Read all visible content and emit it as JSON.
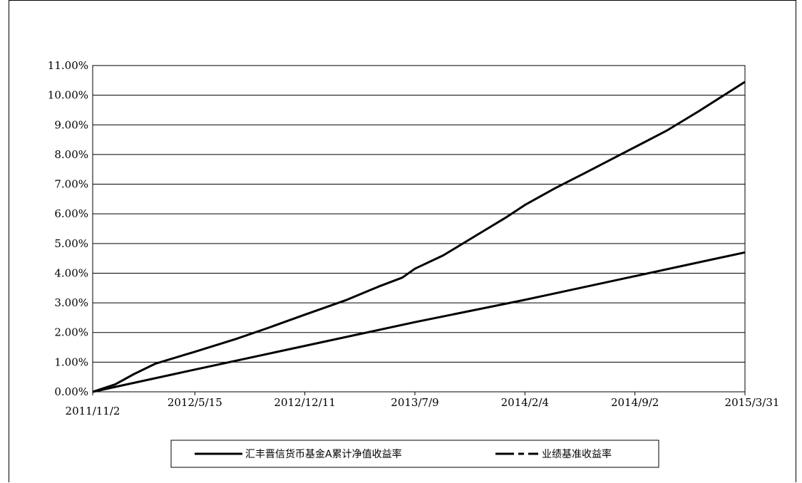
{
  "chart_data": {
    "type": "line",
    "title": "",
    "xlabel": "",
    "ylabel": "",
    "y_ticks": [
      "0.00%",
      "1.00%",
      "2.00%",
      "3.00%",
      "4.00%",
      "5.00%",
      "6.00%",
      "7.00%",
      "8.00%",
      "9.00%",
      "10.00%",
      "11.00%"
    ],
    "x_ticks": [
      "2011/11/2",
      "2012/5/15",
      "2012/12/11",
      "2013/7/9",
      "2014/2/4",
      "2014/9/2",
      "2015/3/31"
    ],
    "ylim": [
      0,
      11
    ],
    "xlim": [
      "2011/11/2",
      "2015/3/31"
    ],
    "grid": "horizontal",
    "legend_position": "bottom",
    "series": [
      {
        "name": "汇丰晋信货币基金A累计净值收益率",
        "style": "solid",
        "color": "#000000",
        "points": [
          [
            "2011/11/2",
            0.0
          ],
          [
            "2011/12/15",
            0.25
          ],
          [
            "2012/1/20",
            0.6
          ],
          [
            "2012/3/1",
            0.95
          ],
          [
            "2012/5/15",
            1.35
          ],
          [
            "2012/8/1",
            1.78
          ],
          [
            "2012/10/1",
            2.15
          ],
          [
            "2012/12/11",
            2.6
          ],
          [
            "2013/3/1",
            3.1
          ],
          [
            "2013/5/1",
            3.55
          ],
          [
            "2013/6/15",
            3.85
          ],
          [
            "2013/7/9",
            4.15
          ],
          [
            "2013/9/1",
            4.6
          ],
          [
            "2013/11/1",
            5.25
          ],
          [
            "2014/1/1",
            5.9
          ],
          [
            "2014/2/4",
            6.3
          ],
          [
            "2014/4/1",
            6.85
          ],
          [
            "2014/6/1",
            7.4
          ],
          [
            "2014/9/2",
            8.25
          ],
          [
            "2014/11/1",
            8.8
          ],
          [
            "2015/1/1",
            9.45
          ],
          [
            "2015/3/31",
            10.45
          ]
        ]
      },
      {
        "name": "业绩基准收益率",
        "style": "dash-dot",
        "color": "#000000",
        "points": [
          [
            "2011/11/2",
            0.0
          ],
          [
            "2012/5/15",
            0.75
          ],
          [
            "2012/12/11",
            1.55
          ],
          [
            "2013/7/9",
            2.35
          ],
          [
            "2014/2/4",
            3.1
          ],
          [
            "2014/9/2",
            3.9
          ],
          [
            "2015/3/31",
            4.7
          ]
        ]
      }
    ]
  }
}
